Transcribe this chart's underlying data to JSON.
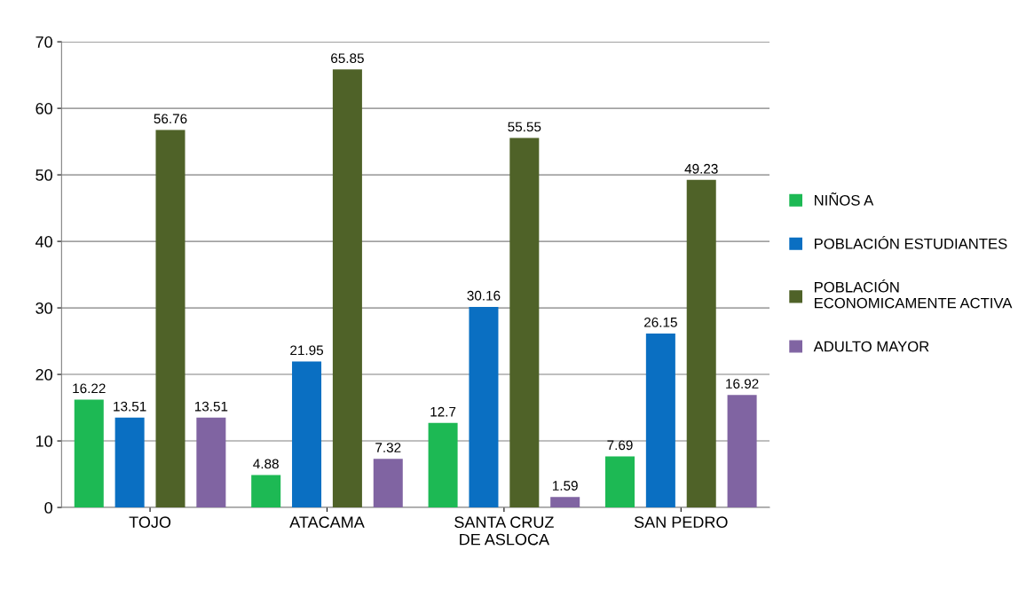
{
  "chart_data": {
    "type": "bar",
    "categories": [
      "TOJO",
      "ATACAMA",
      "SANTA CRUZ DE ASLOCA",
      "SAN PEDRO"
    ],
    "series": [
      {
        "name": "NIÑOS A",
        "color": "#1db954",
        "values": [
          16.22,
          4.88,
          12.7,
          7.69
        ]
      },
      {
        "name": "POBLACIÓN ESTUDIANTES",
        "color": "#0a6fc2",
        "values": [
          13.51,
          21.95,
          30.16,
          26.15
        ]
      },
      {
        "name": "POBLACIÓN ECONOMICAMENTE ACTIVA",
        "color": "#4f6228",
        "values": [
          56.76,
          65.85,
          55.55,
          49.23
        ]
      },
      {
        "name": "ADULTO MAYOR",
        "color": "#8064a2",
        "values": [
          13.51,
          7.32,
          1.59,
          16.92
        ]
      }
    ],
    "ylim": [
      0,
      70
    ],
    "yticks": [
      0,
      10,
      20,
      30,
      40,
      50,
      60,
      70
    ],
    "grid": "y",
    "legend": "right",
    "data_labels": true
  }
}
